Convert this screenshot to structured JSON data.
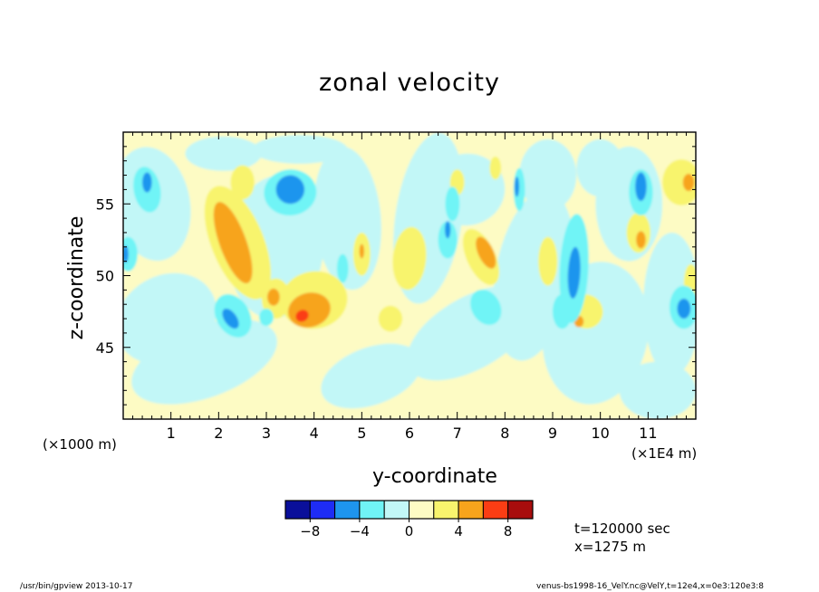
{
  "chart_data": {
    "type": "heatmap",
    "title": "zonal velocity",
    "xlabel": "y-coordinate",
    "ylabel": "z-coordinate",
    "x_scale_note": "(×1000 m)",
    "x_unit_note": "(×1E4 m)",
    "xlim": [
      0,
      12
    ],
    "ylim": [
      40,
      60
    ],
    "x_ticks": [
      1,
      2,
      3,
      4,
      5,
      6,
      7,
      8,
      9,
      10,
      11
    ],
    "y_ticks": [
      45,
      50,
      55
    ],
    "colorbar": {
      "levels": [
        -10,
        -8,
        -6,
        -4,
        -2,
        0,
        2,
        4,
        6,
        8,
        10
      ],
      "tick_labels": [
        "−8",
        "−4",
        "0",
        "4",
        "8"
      ],
      "colors": [
        "#0a0f9a",
        "#1e2cf5",
        "#1e95ee",
        "#70f4f6",
        "#c2f7f7",
        "#fdfbc4",
        "#f8f46d",
        "#f7a41c",
        "#fb3d14",
        "#a80d0d"
      ]
    },
    "features": [
      {
        "y": 2.35,
        "z": 52.2,
        "value": 4.5
      },
      {
        "y": 3.95,
        "z": 47.6,
        "value": 5.5
      },
      {
        "y": 3.75,
        "z": 47.2,
        "value": 7
      },
      {
        "y": 3.5,
        "z": 55.9,
        "value": -5
      },
      {
        "y": 9.45,
        "z": 50.2,
        "value": -5
      },
      {
        "y": 10.85,
        "z": 56.3,
        "value": -5
      },
      {
        "y": 11.75,
        "z": 47.8,
        "value": -5
      },
      {
        "y": 2.2,
        "z": 47.4,
        "value": -5
      },
      {
        "y": 7.6,
        "z": 51.5,
        "value": 4.5
      },
      {
        "y": 11.85,
        "z": 56.5,
        "value": 4.5
      },
      {
        "y": 0.5,
        "z": 56.5,
        "value": -5
      }
    ]
  },
  "annotations": {
    "time": "t=120000 sec",
    "position": "x=1275 m"
  },
  "footer": {
    "left": "/usr/bin/gpview  2013-10-17",
    "right": "venus-bs1998-16_VelY.nc@VelY,t=12e4,x=0e3:120e3:8"
  }
}
